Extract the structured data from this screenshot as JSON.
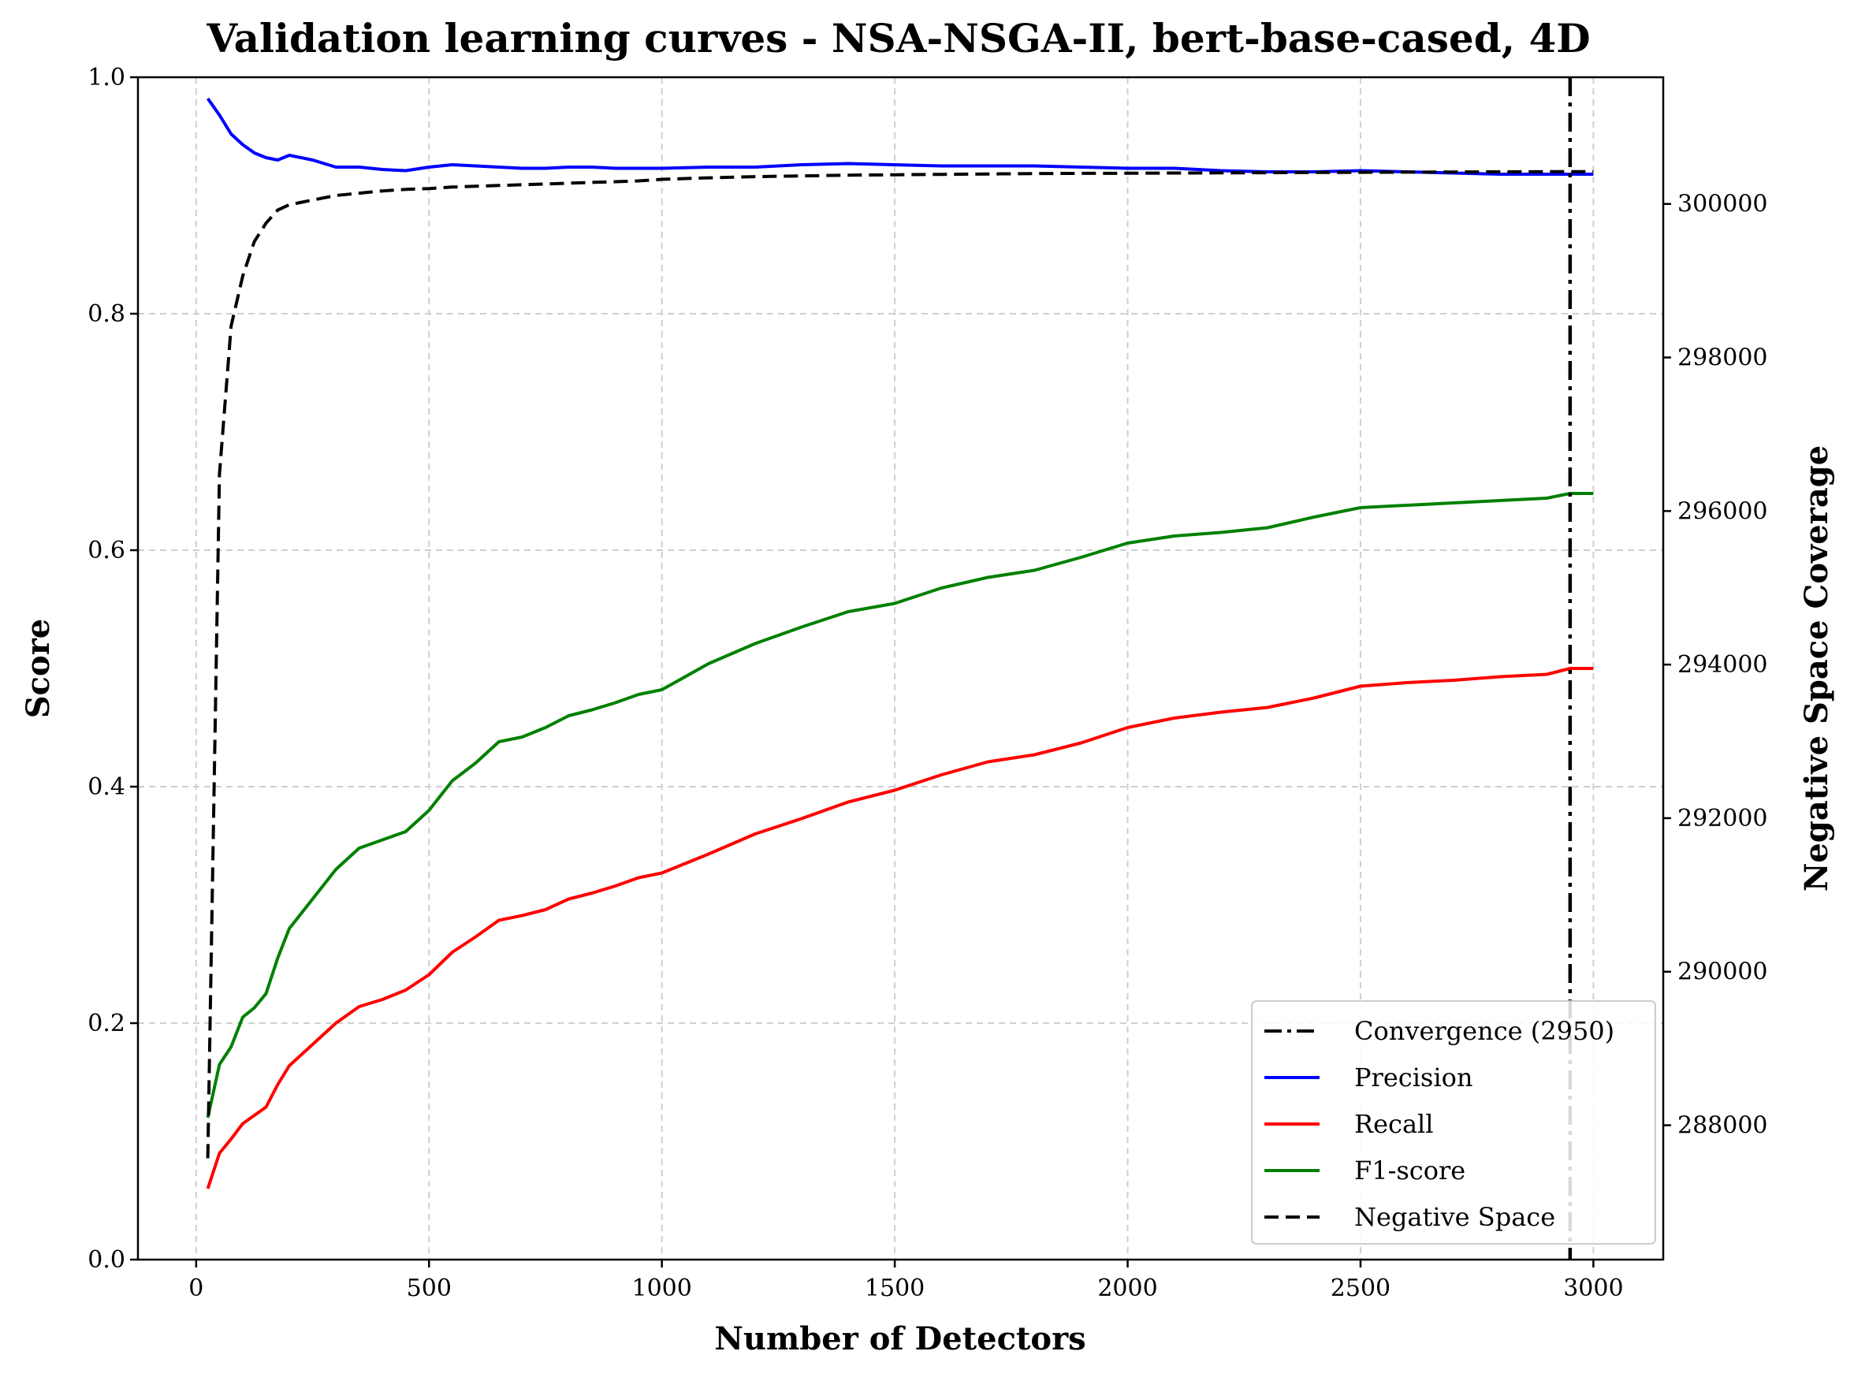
{
  "chart_data": {
    "type": "line",
    "title": "Validation learning curves - NSA-NSGA-II, bert-base-cased, 4D",
    "xlabel": "Number of Detectors",
    "ylabel": "Score",
    "y2label": "Negative Space Coverage",
    "xlim": [
      -125,
      3150
    ],
    "ylim": [
      0,
      1
    ],
    "y2lim": [
      286250,
      301650
    ],
    "xticks": [
      0,
      500,
      1000,
      1500,
      2000,
      2500,
      3000
    ],
    "yticks": [
      "0.0",
      "0.2",
      "0.4",
      "0.6",
      "0.8",
      "1.0"
    ],
    "y2ticks": [
      288000,
      290000,
      292000,
      294000,
      296000,
      298000,
      300000
    ],
    "grid": true,
    "legend_position": "lower-right",
    "convergence": {
      "x": 2950,
      "label": "Convergence (2950)",
      "color": "#000000"
    },
    "x": [
      25,
      50,
      75,
      100,
      125,
      150,
      175,
      200,
      250,
      300,
      350,
      400,
      450,
      500,
      550,
      600,
      650,
      700,
      750,
      800,
      850,
      900,
      950,
      1000,
      1100,
      1200,
      1300,
      1400,
      1500,
      1600,
      1700,
      1800,
      1900,
      2000,
      2100,
      2200,
      2300,
      2400,
      2500,
      2600,
      2700,
      2800,
      2900,
      2950,
      3000
    ],
    "series": [
      {
        "name": "Precision",
        "axis": "left",
        "color": "#0000ff",
        "style": "solid",
        "values": [
          0.982,
          0.968,
          0.952,
          0.943,
          0.936,
          0.932,
          0.93,
          0.934,
          0.93,
          0.924,
          0.924,
          0.922,
          0.921,
          0.924,
          0.926,
          0.925,
          0.924,
          0.923,
          0.923,
          0.924,
          0.924,
          0.923,
          0.923,
          0.923,
          0.924,
          0.924,
          0.926,
          0.927,
          0.926,
          0.925,
          0.925,
          0.925,
          0.924,
          0.923,
          0.923,
          0.921,
          0.92,
          0.92,
          0.921,
          0.92,
          0.919,
          0.918,
          0.918,
          0.918,
          0.918
        ]
      },
      {
        "name": "Recall",
        "axis": "left",
        "color": "#ff0000",
        "style": "solid",
        "values": [
          0.06,
          0.09,
          0.102,
          0.115,
          0.122,
          0.129,
          0.148,
          0.164,
          0.182,
          0.2,
          0.214,
          0.22,
          0.228,
          0.241,
          0.26,
          0.273,
          0.287,
          0.291,
          0.296,
          0.305,
          0.31,
          0.316,
          0.323,
          0.327,
          0.343,
          0.36,
          0.373,
          0.387,
          0.397,
          0.41,
          0.421,
          0.427,
          0.437,
          0.45,
          0.458,
          0.463,
          0.467,
          0.475,
          0.485,
          0.488,
          0.49,
          0.493,
          0.495,
          0.5,
          0.5
        ]
      },
      {
        "name": "F1-score",
        "axis": "left",
        "color": "#008000",
        "style": "solid",
        "values": [
          0.12,
          0.165,
          0.18,
          0.205,
          0.213,
          0.225,
          0.255,
          0.28,
          0.305,
          0.33,
          0.348,
          0.355,
          0.362,
          0.38,
          0.405,
          0.42,
          0.438,
          0.442,
          0.45,
          0.46,
          0.465,
          0.471,
          0.478,
          0.482,
          0.504,
          0.521,
          0.535,
          0.548,
          0.555,
          0.568,
          0.577,
          0.583,
          0.594,
          0.606,
          0.612,
          0.615,
          0.619,
          0.628,
          0.636,
          0.638,
          0.64,
          0.642,
          0.644,
          0.648,
          0.648
        ]
      },
      {
        "name": "Negative Space",
        "axis": "right",
        "color": "#000000",
        "style": "dashed",
        "values": [
          287570,
          296480,
          298410,
          299060,
          299510,
          299750,
          299920,
          299990,
          300050,
          300110,
          300140,
          300170,
          300190,
          300200,
          300220,
          300230,
          300240,
          300250,
          300260,
          300270,
          300280,
          300290,
          300300,
          300320,
          300340,
          300355,
          300365,
          300375,
          300380,
          300385,
          300390,
          300395,
          300398,
          300400,
          300403,
          300405,
          300407,
          300410,
          300412,
          300414,
          300416,
          300418,
          300420,
          300420,
          300420
        ]
      }
    ]
  }
}
